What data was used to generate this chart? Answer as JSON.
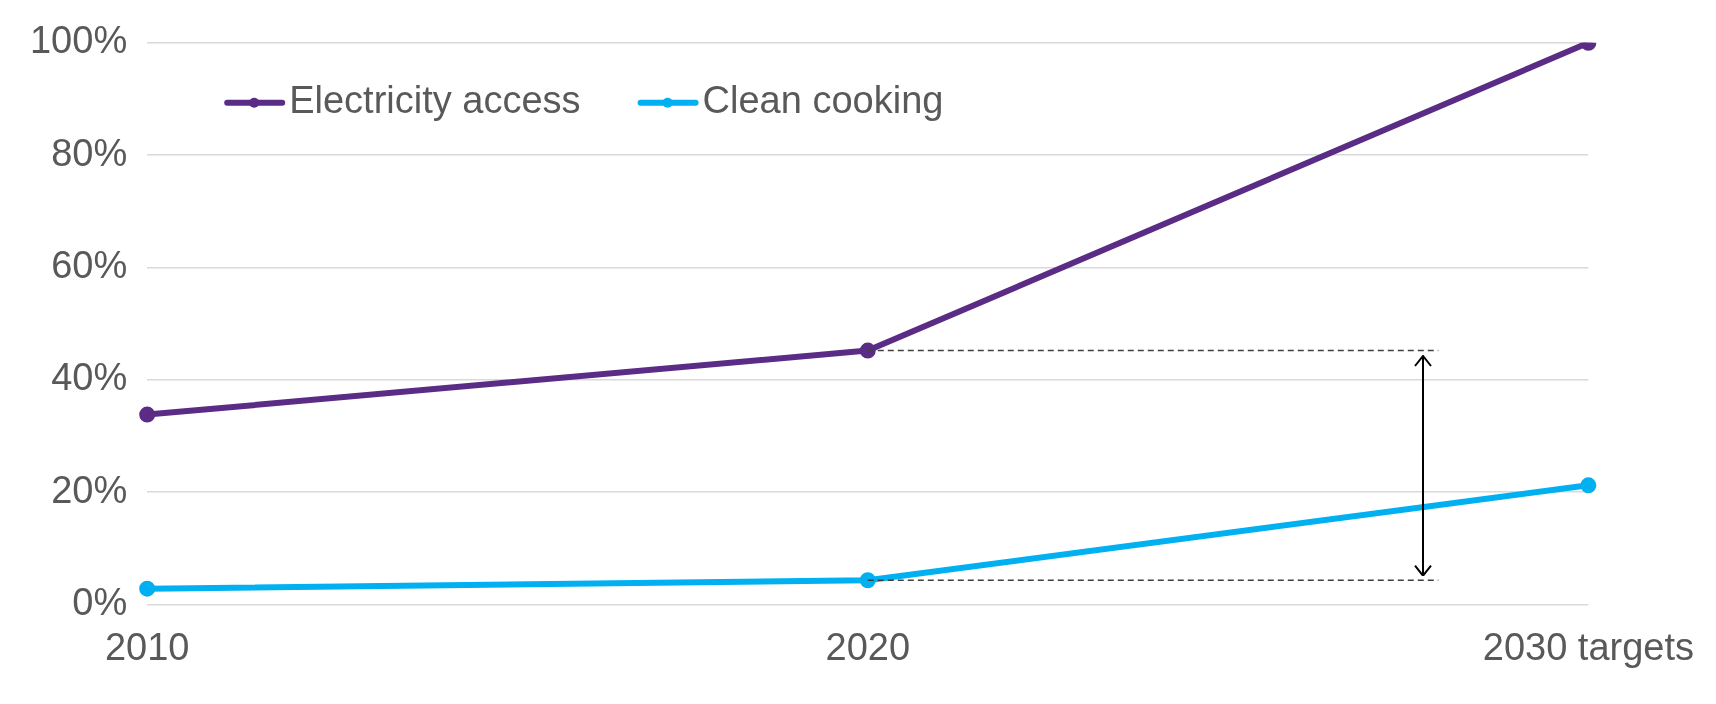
{
  "chart_data": {
    "type": "line",
    "categories": [
      "2010",
      "2020",
      "2030 targets"
    ],
    "series": [
      {
        "name": "Electricity access",
        "color": "#5b2c86",
        "values": [
          33.8,
          45.2,
          100
        ]
      },
      {
        "name": "Clean cooking",
        "color": "#00b0f0",
        "values": [
          2.8,
          4.3,
          21.2
        ]
      }
    ],
    "ylim": [
      0,
      100
    ],
    "yticks": [
      {
        "value": 0,
        "label": "0%"
      },
      {
        "value": 20,
        "label": "20%"
      },
      {
        "value": 40,
        "label": "40%"
      },
      {
        "value": 60,
        "label": "60%"
      },
      {
        "value": 80,
        "label": "80%"
      },
      {
        "value": 100,
        "label": "100%"
      }
    ],
    "ref_lines": [
      {
        "axis": "y",
        "value": 45.2,
        "color": "#404040",
        "line_style": "dashed"
      },
      {
        "axis": "y",
        "value": 4.3,
        "color": "#404040",
        "line_style": "dashed"
      }
    ],
    "grid": "y",
    "legend": "top left",
    "marker": "circle",
    "line_style": "solid"
  }
}
